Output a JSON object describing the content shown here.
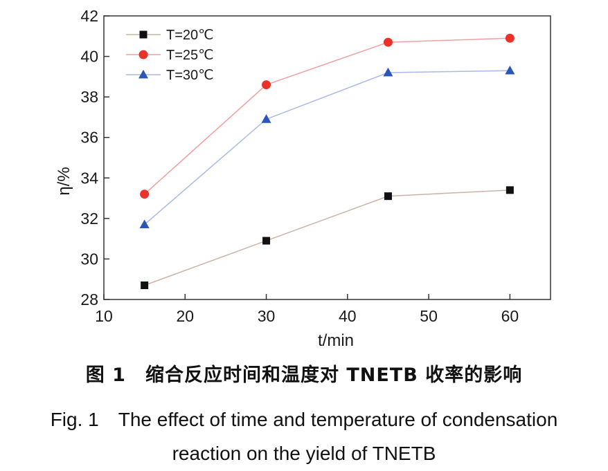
{
  "chart_data": {
    "type": "line",
    "xlabel": "t/min",
    "ylabel": "η/%",
    "xlim": [
      10,
      65
    ],
    "ylim": [
      28,
      42
    ],
    "xticks": [
      10,
      20,
      30,
      40,
      50,
      60
    ],
    "yticks": [
      28,
      30,
      32,
      34,
      36,
      38,
      40,
      42
    ],
    "grid": false,
    "legend_position": "top-left",
    "series": [
      {
        "name": "T=20℃",
        "marker": "square",
        "color": "#111111",
        "line_color": "#c9b3a6",
        "x": [
          15,
          30,
          45,
          60
        ],
        "y": [
          28.7,
          30.9,
          33.1,
          33.4
        ]
      },
      {
        "name": "T=25℃",
        "marker": "circle",
        "color": "#e8322a",
        "line_color": "#f0a0a0",
        "x": [
          15,
          30,
          45,
          60
        ],
        "y": [
          33.2,
          38.6,
          40.7,
          40.9
        ]
      },
      {
        "name": "T=30℃",
        "marker": "triangle",
        "color": "#2b55b8",
        "line_color": "#a9b8e8",
        "x": [
          15,
          30,
          45,
          60
        ],
        "y": [
          31.7,
          36.9,
          39.2,
          39.3
        ]
      }
    ]
  },
  "caption": {
    "cn": "图 1　缩合反应时间和温度对 TNETB 收率的影响",
    "en_line1": "Fig. 1　The effect of time and temperature of condensation",
    "en_line2": "reaction on the yield of TNETB"
  }
}
